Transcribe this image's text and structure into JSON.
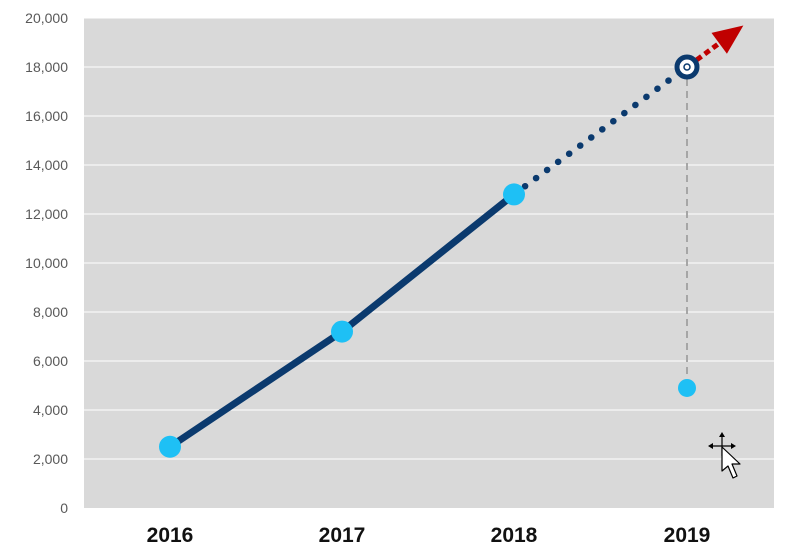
{
  "chart_data": {
    "type": "line",
    "categories": [
      "2016",
      "2017",
      "2018",
      "2019"
    ],
    "ylim": [
      0,
      20000
    ],
    "yticks": [
      0,
      2000,
      4000,
      6000,
      8000,
      10000,
      12000,
      14000,
      16000,
      18000,
      20000
    ],
    "ytick_labels": [
      "0",
      "2,000",
      "4,000",
      "6,000",
      "8,000",
      "10,000",
      "12,000",
      "14,000",
      "16,000",
      "18,000",
      "20,000"
    ],
    "grid": true,
    "series": [
      {
        "values": [
          2500,
          7200,
          12800,
          4900
        ],
        "style": "solid line 2016–2018, point-only 2019"
      }
    ],
    "projection": {
      "from": "2018",
      "to": "2019",
      "from_value": 12800,
      "to_value": 18000,
      "style": "dotted"
    },
    "drop_line": {
      "x": "2019",
      "from_value": 18000,
      "to_value": 4900
    },
    "trend_arrow": {
      "color": "#c00000"
    },
    "colors": {
      "plot_bg": "#d9d9d9",
      "line": "#0b3a6e",
      "marker": "#1ec0f5",
      "arrow": "#c00000",
      "grid": "#ffffff",
      "drop_line": "#a6a6a6"
    }
  },
  "cursor": {
    "icon": "move-cursor-icon"
  }
}
